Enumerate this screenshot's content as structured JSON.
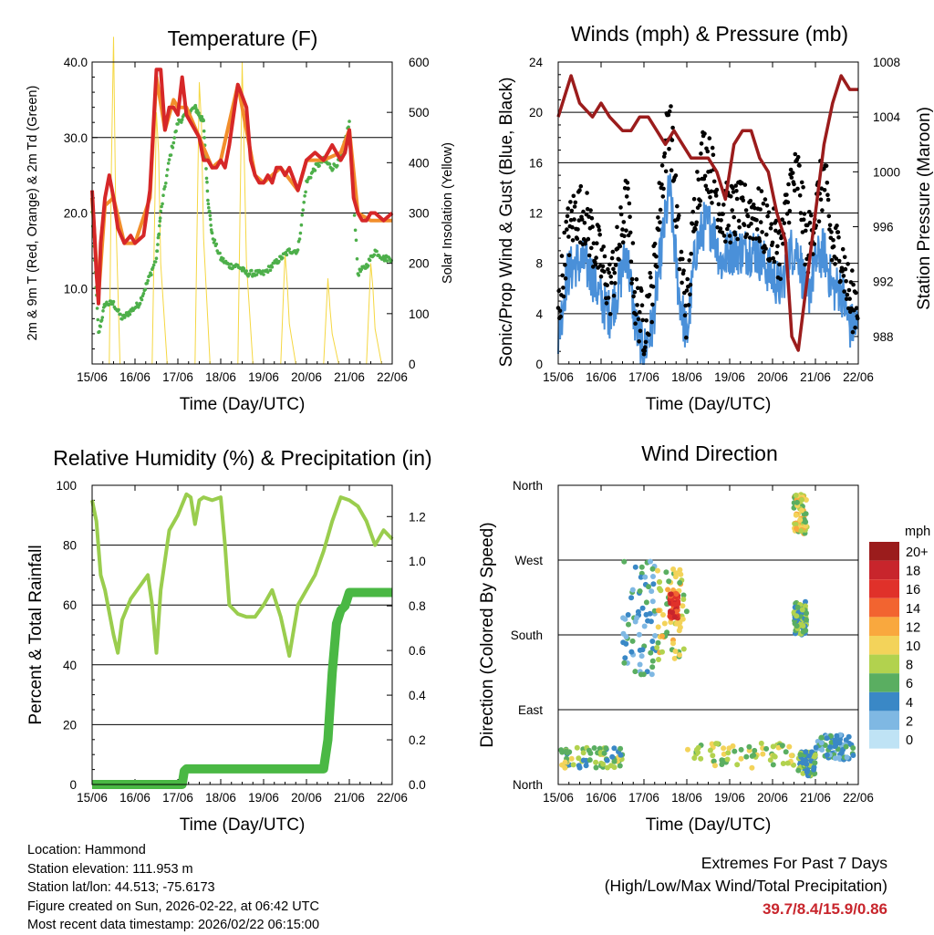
{
  "chart_data": [
    {
      "type": "line",
      "title": "Temperature (F)",
      "xlabel": "Time (Day/UTC)",
      "ylabel": "2m & 9m T (Red, Orange) & 2m Td (Green)",
      "y2label": "Solar Insolation (Yellow)",
      "x_ticks": [
        "15/06",
        "16/06",
        "17/06",
        "18/06",
        "19/06",
        "20/06",
        "21/06",
        "22/06"
      ],
      "y_ticks": [
        "10.0",
        "20.0",
        "30.0",
        "40.0"
      ],
      "y2_ticks": [
        "0",
        "100",
        "200",
        "300",
        "400",
        "500",
        "600"
      ],
      "ylim": [
        0,
        40
      ],
      "y2lim": [
        0,
        600
      ],
      "series": [
        {
          "name": "2m T",
          "color": "#d62728",
          "x": [
            0,
            0.05,
            0.1,
            0.15,
            0.2,
            0.3,
            0.4,
            0.5,
            0.6,
            0.75,
            0.9,
            1.0,
            1.2,
            1.35,
            1.5,
            1.6,
            1.7,
            1.8,
            1.9,
            2.0,
            2.1,
            2.2,
            2.4,
            2.5,
            2.6,
            2.7,
            2.8,
            2.9,
            3.0,
            3.1,
            3.2,
            3.4,
            3.6,
            3.7,
            3.8,
            3.9,
            4.0,
            4.1,
            4.2,
            4.3,
            4.4,
            4.5,
            4.6,
            4.8,
            5.0,
            5.2,
            5.4,
            5.6,
            5.8,
            5.9,
            6.0,
            6.1,
            6.2,
            6.3,
            6.4,
            6.5,
            6.6,
            6.8,
            7.0
          ],
          "values": [
            23,
            18,
            12,
            8,
            16,
            22,
            25,
            22,
            18,
            16,
            17,
            16,
            17,
            23,
            39,
            39,
            31,
            34,
            34,
            33,
            38,
            33,
            31,
            30,
            27,
            27,
            26,
            26,
            27,
            26,
            29,
            37,
            34,
            27,
            25,
            24,
            24,
            25,
            24,
            26,
            26,
            25,
            26,
            23,
            27,
            28,
            27,
            29,
            27,
            28,
            31,
            22,
            20,
            19,
            19,
            20,
            20,
            19,
            20
          ]
        },
        {
          "name": "9m T",
          "color": "#f28e2b",
          "x": [
            0,
            0.15,
            0.3,
            0.5,
            0.75,
            1.0,
            1.35,
            1.5,
            1.7,
            1.9,
            2.0,
            2.2,
            2.5,
            2.8,
            3.0,
            3.4,
            3.8,
            4.0,
            4.4,
            4.8,
            5.0,
            5.4,
            5.8,
            6.0,
            6.2,
            6.5,
            7.0
          ],
          "values": [
            22,
            9,
            21,
            22,
            16,
            16,
            22,
            38,
            31,
            35,
            34,
            34,
            30,
            26,
            27,
            37,
            25,
            24,
            26,
            23,
            27,
            27,
            28,
            31,
            20,
            19,
            19
          ]
        },
        {
          "name": "2m Td",
          "color": "#4daf4a",
          "x": [
            0,
            0.15,
            0.3,
            0.5,
            0.7,
            0.9,
            1.1,
            1.3,
            1.5,
            1.6,
            1.8,
            2.0,
            2.2,
            2.4,
            2.5,
            2.6,
            2.7,
            2.8,
            3.0,
            3.2,
            3.4,
            3.6,
            3.8,
            4.0,
            4.2,
            4.4,
            4.6,
            4.8,
            5.0,
            5.2,
            5.4,
            5.6,
            5.8,
            6.0,
            6.2,
            6.4,
            6.6,
            6.8,
            7.0
          ],
          "values": [
            20,
            4,
            8,
            8,
            6,
            7,
            8,
            11,
            14,
            20,
            27,
            32,
            33,
            34,
            33,
            32,
            22,
            17,
            14,
            13,
            13,
            12,
            12,
            12,
            13,
            14,
            15,
            15,
            24,
            26,
            27,
            26,
            27,
            32,
            12,
            13,
            15,
            14,
            14
          ]
        },
        {
          "name": "Solar Insolation",
          "axis": "right",
          "color": "#f5d742",
          "x": [
            0.4,
            0.45,
            0.5,
            0.55,
            0.65,
            1.4,
            1.5,
            1.55,
            1.6,
            1.75,
            2.4,
            2.5,
            2.55,
            2.6,
            2.75,
            3.4,
            3.5,
            3.55,
            3.6,
            3.75,
            4.4,
            4.5,
            4.55,
            4.6,
            4.75,
            5.4,
            5.5,
            5.55,
            5.6,
            5.75,
            6.4,
            6.5,
            6.55,
            6.6,
            6.75
          ],
          "values": [
            0,
            400,
            650,
            300,
            0,
            0,
            500,
            420,
            200,
            0,
            0,
            560,
            480,
            250,
            0,
            0,
            600,
            400,
            200,
            0,
            0,
            220,
            160,
            80,
            0,
            0,
            170,
            110,
            60,
            0,
            0,
            200,
            150,
            70,
            0
          ]
        }
      ]
    },
    {
      "type": "line",
      "title": "Winds (mph) & Pressure (mb)",
      "xlabel": "Time (Day/UTC)",
      "ylabel": "Sonic/Prop Wind & Gust (Blue, Black)",
      "y2label": "Station Pressure (Maroon)",
      "x_ticks": [
        "15/06",
        "16/06",
        "17/06",
        "18/06",
        "19/06",
        "20/06",
        "21/06",
        "22/06"
      ],
      "y_ticks": [
        "0",
        "4",
        "8",
        "12",
        "16",
        "20",
        "24"
      ],
      "y2_ticks": [
        "988",
        "992",
        "996",
        "1000",
        "1004",
        "1008"
      ],
      "ylim": [
        0,
        24
      ],
      "y2lim": [
        986,
        1008
      ],
      "series": [
        {
          "name": "Sonic/Prop Wind",
          "color": "#4a90d9",
          "x": [
            0,
            0.2,
            0.4,
            0.6,
            0.8,
            1.0,
            1.2,
            1.4,
            1.6,
            1.8,
            2.0,
            2.2,
            2.4,
            2.6,
            2.8,
            3.0,
            3.2,
            3.4,
            3.6,
            3.8,
            4.0,
            4.2,
            4.4,
            4.6,
            4.8,
            5.0,
            5.2,
            5.4,
            5.6,
            5.8,
            6.0,
            6.2,
            6.4,
            6.6,
            6.8,
            7.0
          ],
          "values": [
            2,
            7,
            8,
            8,
            7,
            5,
            4,
            6,
            9,
            3,
            1,
            3,
            9,
            14,
            6,
            2,
            9,
            11,
            11,
            8,
            9,
            9,
            9,
            9,
            8,
            7,
            6,
            9,
            9,
            5,
            8,
            9,
            6,
            6,
            3,
            3
          ]
        },
        {
          "name": "Gust",
          "color": "#000000",
          "x": [
            0,
            0.2,
            0.4,
            0.6,
            0.8,
            1.0,
            1.2,
            1.4,
            1.6,
            1.8,
            2.0,
            2.2,
            2.4,
            2.6,
            2.8,
            3.0,
            3.2,
            3.4,
            3.6,
            3.8,
            4.0,
            4.2,
            4.4,
            4.6,
            4.8,
            5.0,
            5.2,
            5.4,
            5.6,
            5.8,
            6.0,
            6.2,
            6.4,
            6.6,
            6.8,
            7.0
          ],
          "values": [
            4,
            10,
            12,
            12,
            10,
            8,
            6,
            9,
            13,
            5,
            3,
            6,
            14,
            20,
            10,
            4,
            13,
            17,
            15,
            12,
            12,
            12,
            12,
            12,
            11,
            10,
            9,
            14,
            15,
            9,
            12,
            15,
            9,
            9,
            5,
            5
          ]
        },
        {
          "name": "Station Pressure",
          "axis": "right",
          "color": "#9b1c1c",
          "x": [
            0,
            0.1,
            0.3,
            0.5,
            0.8,
            1.0,
            1.2,
            1.5,
            1.7,
            1.9,
            2.1,
            2.3,
            2.5,
            2.7,
            2.9,
            3.1,
            3.3,
            3.5,
            3.7,
            3.9,
            4.1,
            4.3,
            4.5,
            4.7,
            4.9,
            5.1,
            5.3,
            5.45,
            5.6,
            5.8,
            6.0,
            6.2,
            6.4,
            6.6,
            6.8,
            7.0
          ],
          "values": [
            1004,
            1005,
            1007,
            1005,
            1004,
            1005,
            1004,
            1003,
            1003,
            1004,
            1004,
            1003,
            1002,
            1003,
            1002,
            1001,
            1001,
            1001,
            1000,
            998,
            1002,
            1003,
            1003,
            1001,
            1000,
            997,
            995,
            988,
            987,
            992,
            997,
            1002,
            1005,
            1007,
            1006,
            1006
          ]
        }
      ]
    },
    {
      "type": "line",
      "title": "Relative Humidity (%) & Precipitation (in)",
      "xlabel": "Time (Day/UTC)",
      "ylabel": "Percent & Total Rainfall",
      "x_ticks": [
        "15/06",
        "16/06",
        "17/06",
        "18/06",
        "19/06",
        "20/06",
        "21/06",
        "22/06"
      ],
      "y_ticks": [
        "0",
        "20",
        "40",
        "60",
        "80",
        "100"
      ],
      "y2_ticks": [
        "0.0",
        "0.2",
        "0.4",
        "0.6",
        "0.8",
        "1.0",
        "1.2"
      ],
      "ylim": [
        0,
        100
      ],
      "y2lim": [
        0,
        1.34
      ],
      "series": [
        {
          "name": "Relative Humidity",
          "color": "#9acd4e",
          "x": [
            0,
            0.1,
            0.2,
            0.3,
            0.5,
            0.6,
            0.7,
            0.9,
            1.1,
            1.3,
            1.4,
            1.5,
            1.6,
            1.8,
            2.0,
            2.2,
            2.3,
            2.4,
            2.5,
            2.6,
            2.8,
            3.0,
            3.1,
            3.2,
            3.4,
            3.6,
            3.8,
            4.0,
            4.2,
            4.4,
            4.6,
            4.8,
            5.0,
            5.2,
            5.4,
            5.6,
            5.8,
            6.0,
            6.2,
            6.4,
            6.6,
            6.8,
            7.0
          ],
          "values": [
            95,
            88,
            70,
            65,
            50,
            44,
            55,
            62,
            66,
            70,
            60,
            44,
            65,
            85,
            90,
            97,
            96,
            87,
            95,
            96,
            95,
            96,
            80,
            60,
            57,
            56,
            56,
            60,
            65,
            56,
            43,
            60,
            65,
            70,
            78,
            88,
            96,
            95,
            93,
            88,
            80,
            85,
            82
          ]
        },
        {
          "name": "Total Rainfall",
          "axis": "right",
          "color": "#4ab844",
          "x": [
            0,
            2.1,
            2.15,
            2.2,
            5.0,
            5.4,
            5.5,
            5.6,
            5.7,
            5.8,
            5.9,
            6.0,
            7.0
          ],
          "values": [
            0,
            0,
            0.06,
            0.07,
            0.07,
            0.07,
            0.2,
            0.5,
            0.72,
            0.78,
            0.8,
            0.86,
            0.86
          ]
        }
      ]
    },
    {
      "type": "scatter",
      "title": "Wind Direction",
      "xlabel": "Time (Day/UTC)",
      "ylabel": "Direction (Colored By Speed)",
      "x_ticks": [
        "15/06",
        "16/06",
        "17/06",
        "18/06",
        "19/06",
        "20/06",
        "21/06",
        "22/06"
      ],
      "y_ticks": [
        "North",
        "East",
        "South",
        "West",
        "North"
      ],
      "ylim": [
        0,
        360
      ],
      "legend_title": "mph",
      "legend_labels": [
        "20+",
        "18",
        "16",
        "14",
        "12",
        "10",
        "8",
        "6",
        "4",
        "2",
        "0"
      ],
      "legend_colors": [
        "#9b1c1c",
        "#c8252c",
        "#e0312a",
        "#f26430",
        "#f9a83e",
        "#f3d35a",
        "#b2d24e",
        "#5aae61",
        "#3a88c6",
        "#7fb8e3",
        "#bfe3f5"
      ],
      "clusters": [
        {
          "x": [
            0,
            1.5
          ],
          "dir": [
            20,
            45
          ],
          "speed": 7
        },
        {
          "x": [
            1.5,
            2.3
          ],
          "dir": [
            130,
            270
          ],
          "speed": 4
        },
        {
          "x": [
            2.3,
            3.0
          ],
          "dir": [
            150,
            260
          ],
          "speed": 9
        },
        {
          "x": [
            2.6,
            2.8
          ],
          "dir": [
            200,
            230
          ],
          "speed": 16
        },
        {
          "x": [
            3.0,
            5.5
          ],
          "dir": [
            20,
            50
          ],
          "speed": 8
        },
        {
          "x": [
            5.6,
            6.0
          ],
          "dir": [
            10,
            40
          ],
          "speed": 6
        },
        {
          "x": [
            6.0,
            6.9
          ],
          "dir": [
            30,
            60
          ],
          "speed": 4
        },
        {
          "x": [
            5.5,
            5.8
          ],
          "dir": [
            300,
            350
          ],
          "speed": 9
        },
        {
          "x": [
            5.5,
            5.8
          ],
          "dir": [
            180,
            220
          ],
          "speed": 6
        }
      ]
    }
  ],
  "footer": {
    "location": "Location: Hammond",
    "elevation": "Station elevation: 111.953 m",
    "latlon": "Station lat/lon: 44.513; -75.6173",
    "created": "Figure created on Sun, 2026-02-22, at 06:42 UTC",
    "timestamp": "Most recent data timestamp: 2026/02/22 06:15:00"
  },
  "extremes": {
    "title": "Extremes For Past 7 Days",
    "subtitle": "(High/Low/Max Wind/Total Precipitation)",
    "values": "39.7/8.4/15.9/0.86"
  }
}
